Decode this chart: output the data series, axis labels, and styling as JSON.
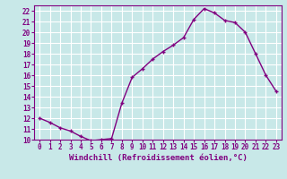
{
  "x": [
    0,
    1,
    2,
    3,
    4,
    5,
    6,
    7,
    8,
    9,
    10,
    11,
    12,
    13,
    14,
    15,
    16,
    17,
    18,
    19,
    20,
    21,
    22,
    23
  ],
  "y": [
    12.0,
    11.6,
    11.1,
    10.8,
    10.3,
    9.9,
    10.0,
    10.1,
    13.4,
    15.8,
    16.6,
    17.5,
    18.2,
    18.8,
    19.5,
    21.2,
    22.2,
    21.8,
    21.1,
    20.9,
    20.0,
    18.0,
    16.0,
    14.5
  ],
  "line_color": "#800080",
  "marker": "+",
  "marker_size": 3,
  "linewidth": 1.0,
  "xlabel": "Windchill (Refroidissement éolien,°C)",
  "xlim": [
    -0.5,
    23.5
  ],
  "ylim": [
    10,
    22.5
  ],
  "yticks": [
    10,
    11,
    12,
    13,
    14,
    15,
    16,
    17,
    18,
    19,
    20,
    21,
    22
  ],
  "xticks": [
    0,
    1,
    2,
    3,
    4,
    5,
    6,
    7,
    8,
    9,
    10,
    11,
    12,
    13,
    14,
    15,
    16,
    17,
    18,
    19,
    20,
    21,
    22,
    23
  ],
  "bg_color": "#c8e8e8",
  "grid_color": "#ffffff",
  "tick_label_color": "#800080",
  "xlabel_color": "#800080",
  "tick_fontsize": 5.5,
  "xlabel_fontsize": 6.5
}
